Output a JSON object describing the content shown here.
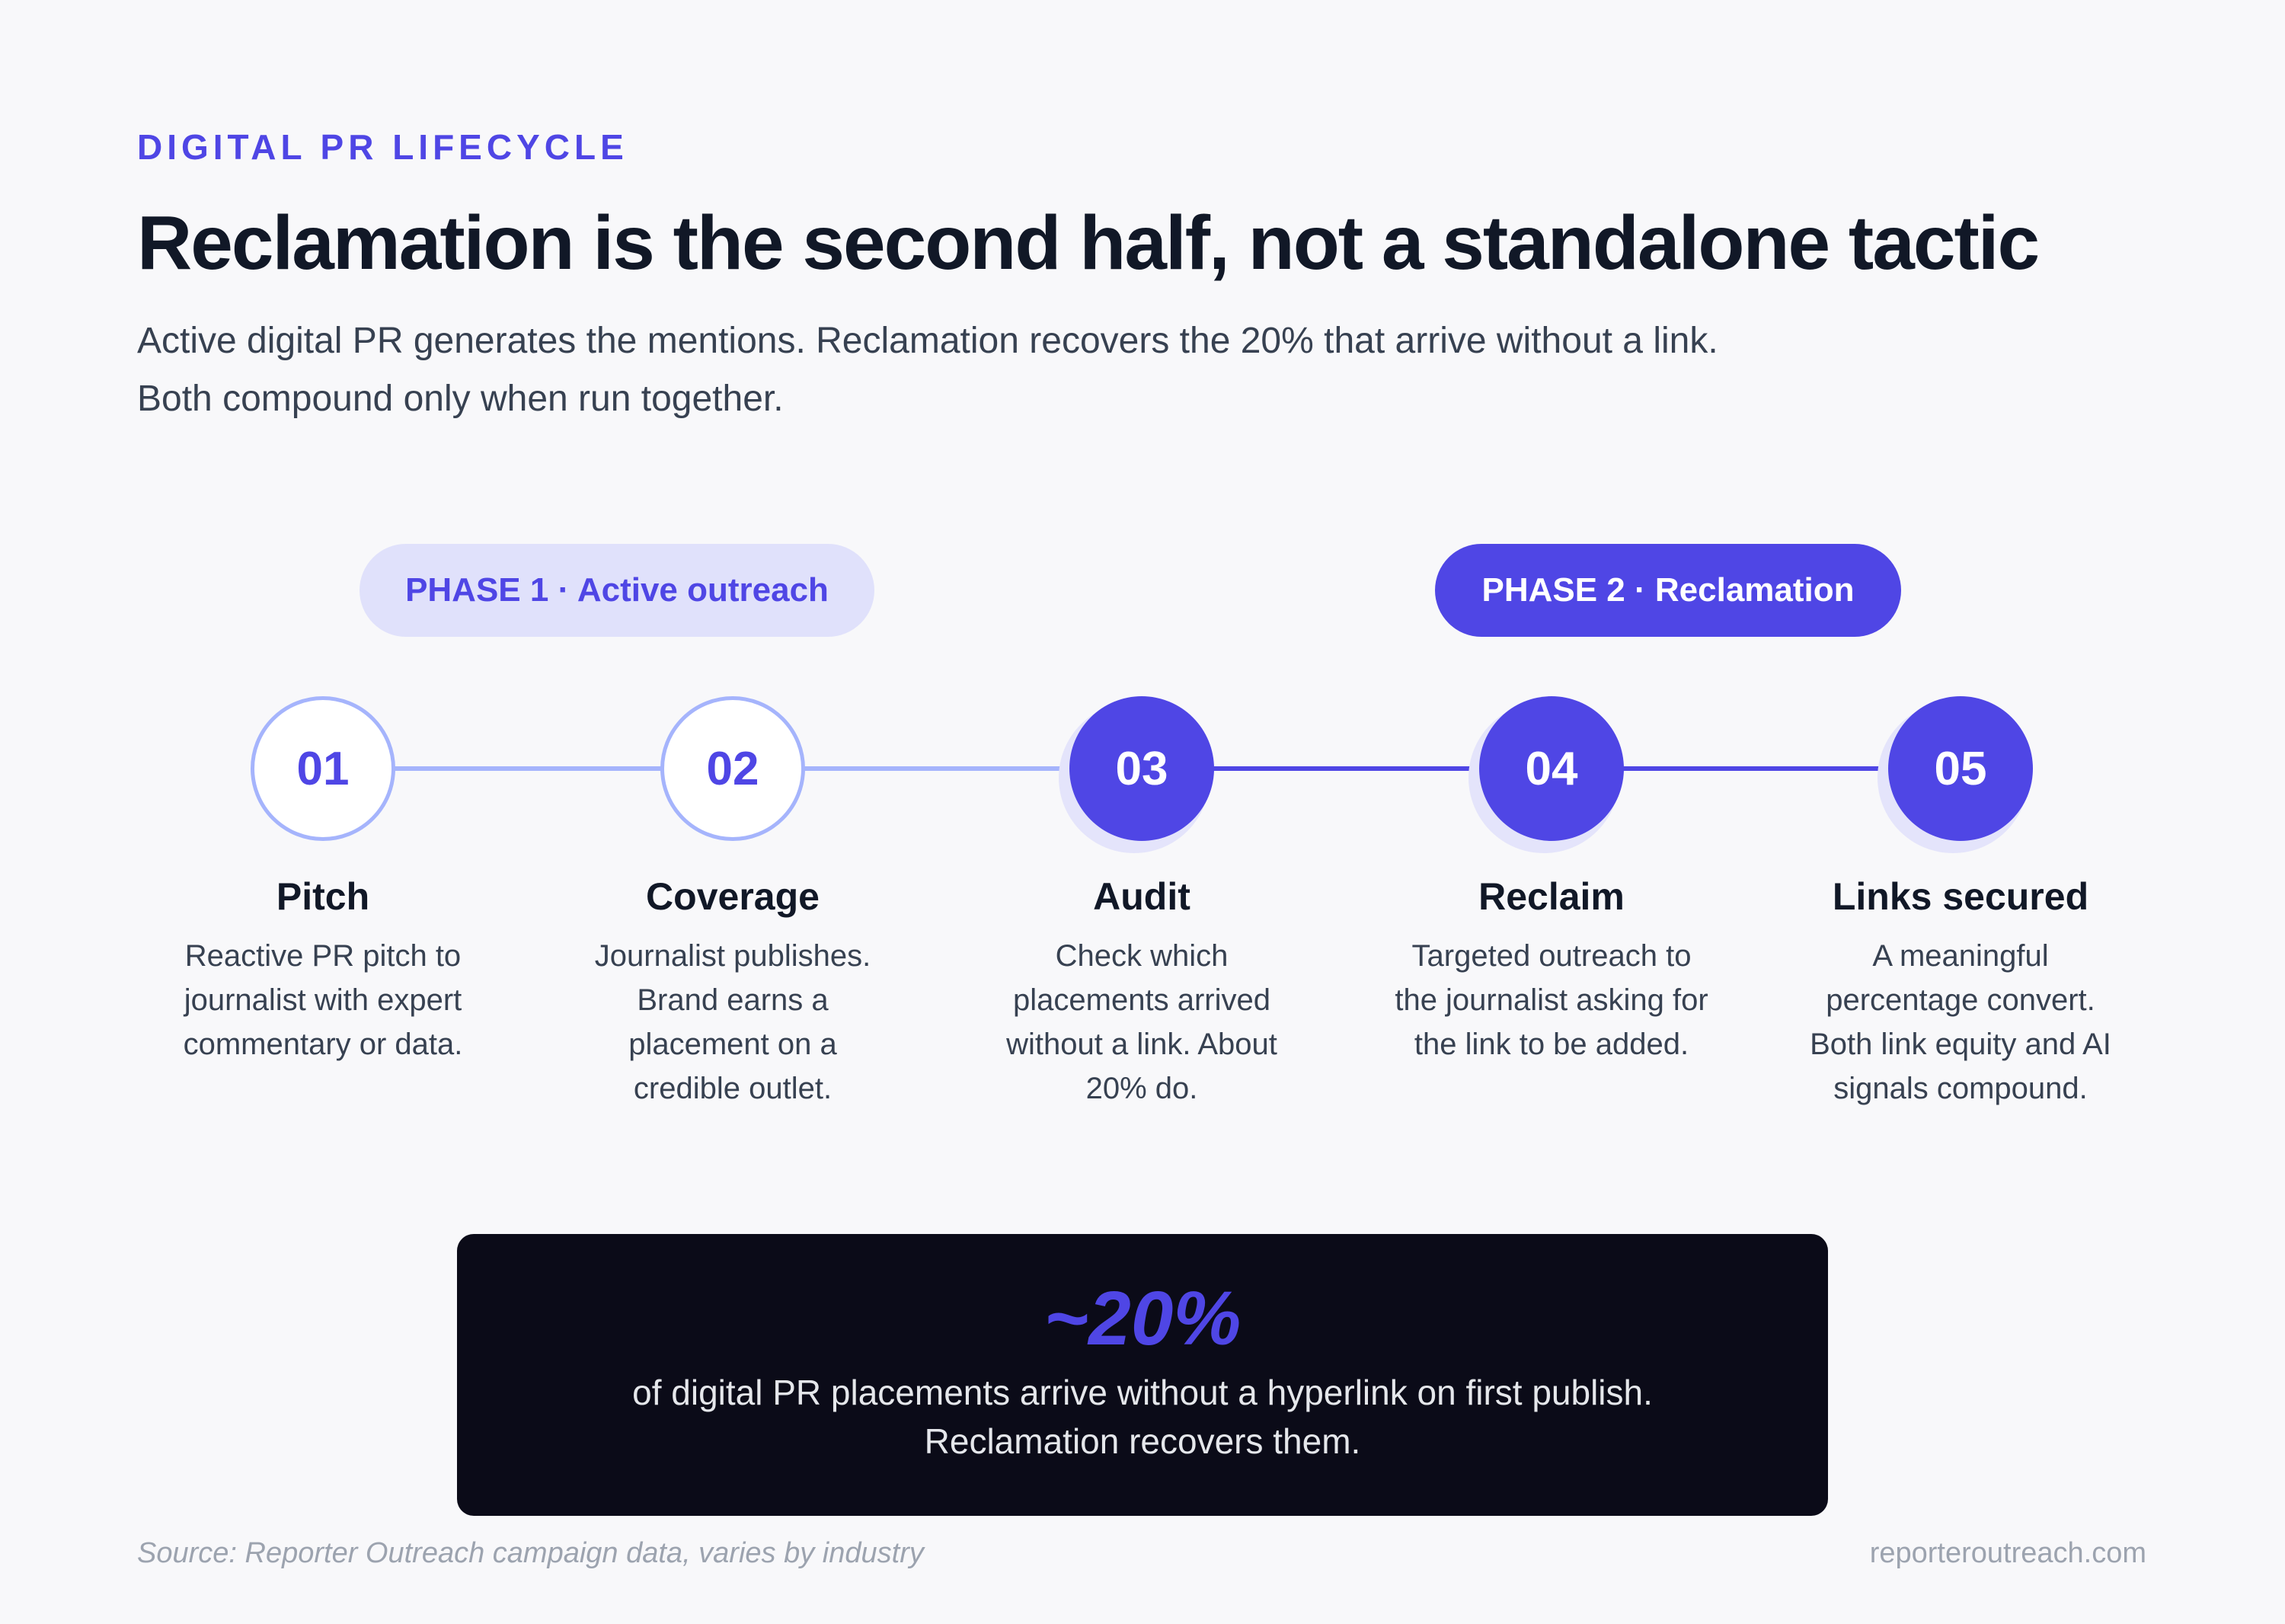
{
  "header": {
    "eyebrow": "DIGITAL PR LIFECYCLE",
    "title": "Reclamation is the second half, not a standalone tactic",
    "subtitle_lines": [
      "Active digital PR generates the mentions. Reclamation recovers the 20% that arrive without a link.",
      "Both compound only when run together."
    ]
  },
  "phases": [
    {
      "label": "PHASE 1 · Active outreach",
      "style": "light"
    },
    {
      "label": "PHASE 2 · Reclamation",
      "style": "dark"
    }
  ],
  "steps": [
    {
      "number": "01",
      "title": "Pitch",
      "style": "light",
      "desc": [
        "Reactive PR pitch to",
        "journalist with expert",
        "commentary or data."
      ]
    },
    {
      "number": "02",
      "title": "Coverage",
      "style": "light",
      "desc": [
        "Journalist publishes.",
        "Brand earns a",
        "placement on a",
        "credible outlet."
      ]
    },
    {
      "number": "03",
      "title": "Audit",
      "style": "dark",
      "desc": [
        "Check which",
        "placements arrived",
        "without a link. About",
        "20% do."
      ]
    },
    {
      "number": "04",
      "title": "Reclaim",
      "style": "dark",
      "desc": [
        "Targeted outreach to",
        "the journalist asking for",
        "the link to be added."
      ]
    },
    {
      "number": "05",
      "title": "Links secured",
      "style": "dark",
      "desc": [
        "A meaningful",
        "percentage convert.",
        "Both link equity and AI",
        "signals compound."
      ]
    }
  ],
  "callout": {
    "stat": "~20%",
    "lines": [
      "of digital PR placements arrive without a hyperlink on first publish.",
      "Reclamation recovers them."
    ]
  },
  "footer": {
    "source": "Source: Reporter Outreach campaign data, varies by industry",
    "site": "reporteroutreach.com"
  },
  "colors": {
    "accent": "#4f46e5",
    "accent_light": "#a5b4fc",
    "phase_light_bg": "#e0e1fb",
    "callout_bg": "#0b0b18"
  }
}
